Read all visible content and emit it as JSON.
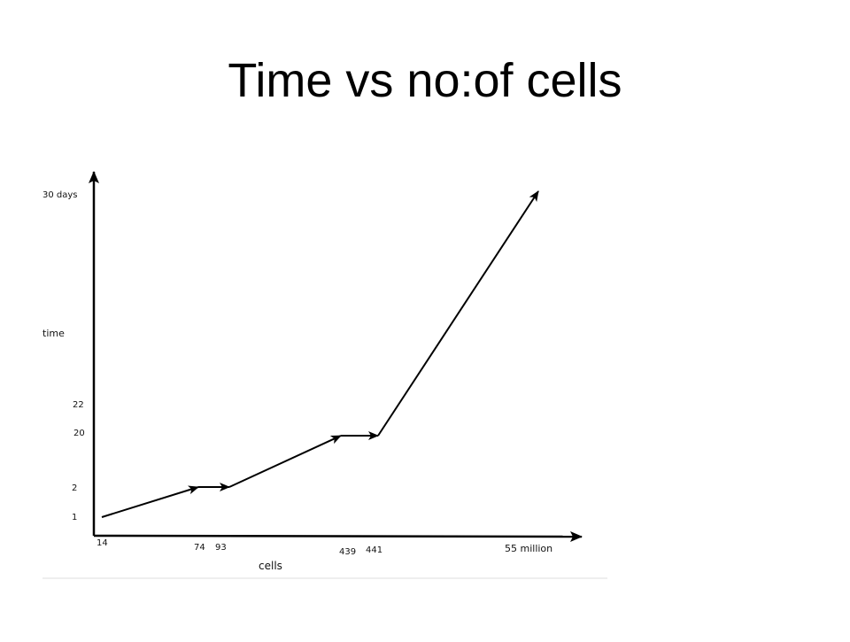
{
  "slide": {
    "title": "Time vs no:of cells"
  },
  "chart_data": {
    "type": "line",
    "title": "Time vs no:of cells",
    "xlabel": "cells",
    "ylabel": "time",
    "x_tick_labels": [
      "14",
      "74",
      "93",
      "439",
      "441",
      "55 million"
    ],
    "y_tick_labels": [
      "1",
      "2",
      "20",
      "22",
      "30 days"
    ],
    "series": [
      {
        "points": [
          {
            "x": "14",
            "y": "1"
          },
          {
            "x": "74",
            "y": "2"
          },
          {
            "x": "93",
            "y": "2"
          },
          {
            "x": "439",
            "y": "20"
          },
          {
            "x": "441",
            "y": "20"
          },
          {
            "x": "55 million",
            "y": "30 days"
          }
        ]
      }
    ],
    "grid": false,
    "legend": "none",
    "colors": {
      "line": "#000000",
      "axis": "#000000",
      "baseline": "#dddddd"
    }
  }
}
